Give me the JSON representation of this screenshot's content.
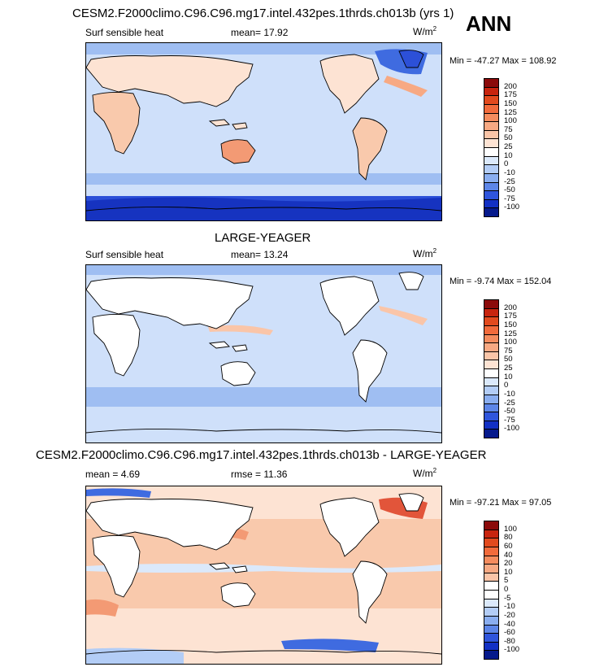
{
  "season": "ANN",
  "panels": [
    {
      "title": "CESM2.F2000climo.C96.C96.mg17.intel.432pes.1thrds.ch013b (yrs 1)",
      "left_label": "Surf sensible heat",
      "center_label": "mean=  17.92",
      "units": "W/m",
      "units_sup": "2",
      "minmax": "Min = -47.27 Max = 108.92",
      "colorbar_labels": [
        "200",
        "175",
        "150",
        "125",
        "100",
        "75",
        "50",
        "25",
        "10",
        "0",
        "-10",
        "-25",
        "-50",
        "-75",
        "-100"
      ],
      "colorbar_colors": [
        "#8b0a0a",
        "#c8240e",
        "#e24a1e",
        "#f26b3c",
        "#f58c5e",
        "#f7a983",
        "#fac5a8",
        "#fde3d3",
        "#ffffff",
        "#dbe9fb",
        "#b3cdf6",
        "#8aaef0",
        "#5d86e8",
        "#2f55dc",
        "#1230c4",
        "#061a8c"
      ]
    },
    {
      "title": "LARGE-YEAGER",
      "left_label": "Surf sensible heat",
      "center_label": "mean=  13.24",
      "units": "W/m",
      "units_sup": "2",
      "minmax": "Min =  -9.74 Max = 152.04",
      "colorbar_labels": [
        "200",
        "175",
        "150",
        "125",
        "100",
        "75",
        "50",
        "25",
        "10",
        "0",
        "-10",
        "-25",
        "-50",
        "-75",
        "-100"
      ],
      "colorbar_colors": [
        "#8b0a0a",
        "#c8240e",
        "#e24a1e",
        "#f26b3c",
        "#f58c5e",
        "#f7a983",
        "#fac5a8",
        "#fde3d3",
        "#ffffff",
        "#dbe9fb",
        "#b3cdf6",
        "#8aaef0",
        "#5d86e8",
        "#2f55dc",
        "#1230c4",
        "#061a8c"
      ]
    },
    {
      "title": "CESM2.F2000climo.C96.C96.mg17.intel.432pes.1thrds.ch013b - LARGE-YEAGER",
      "left_label": "mean =   4.69",
      "center_label": "rmse =  11.36",
      "units": "W/m",
      "units_sup": "2",
      "minmax": "Min = -97.21 Max =  97.05",
      "colorbar_labels": [
        "100",
        "80",
        "60",
        "40",
        "20",
        "10",
        "5",
        "0",
        "-5",
        "-10",
        "-20",
        "-40",
        "-60",
        "-80",
        "-100"
      ],
      "colorbar_colors": [
        "#8b0a0a",
        "#c8240e",
        "#e24a1e",
        "#f26b3c",
        "#f58c5e",
        "#f7a983",
        "#fac5a8",
        "#ffffff",
        "#ffffff",
        "#dbe9fb",
        "#b3cdf6",
        "#8aaef0",
        "#5d86e8",
        "#2f55dc",
        "#1230c4",
        "#061a8c"
      ]
    }
  ],
  "colors": {
    "ocean_light_blue": "#cfe0fa",
    "ocean_blue": "#9fbef2",
    "ocean_dark_blue": "#2c50d8",
    "land_warm": "#f9c9ac",
    "land_warmer": "#f39a74",
    "difference_red": "#e2553a"
  }
}
